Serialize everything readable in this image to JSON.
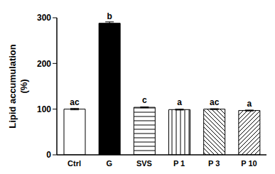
{
  "chart_data": {
    "type": "bar",
    "categories": [
      "Ctrl",
      "G",
      "SVS",
      "P 1",
      "P 3",
      "P 10"
    ],
    "values": [
      100,
      288,
      104,
      99,
      100,
      97
    ],
    "errors": [
      1.5,
      3,
      1,
      1,
      1,
      1
    ],
    "annotations": [
      "ac",
      "b",
      "c",
      "a",
      "ac",
      "a"
    ],
    "colors": [
      "#ffffff",
      "#000000",
      "#ffffff",
      "#ffffff",
      "#ffffff",
      "#ffffff"
    ],
    "ylabel": "Lipid accumulation (%)",
    "ylim": [
      0,
      300
    ],
    "yticks": [
      0,
      100,
      200,
      300
    ],
    "grid": false
  }
}
